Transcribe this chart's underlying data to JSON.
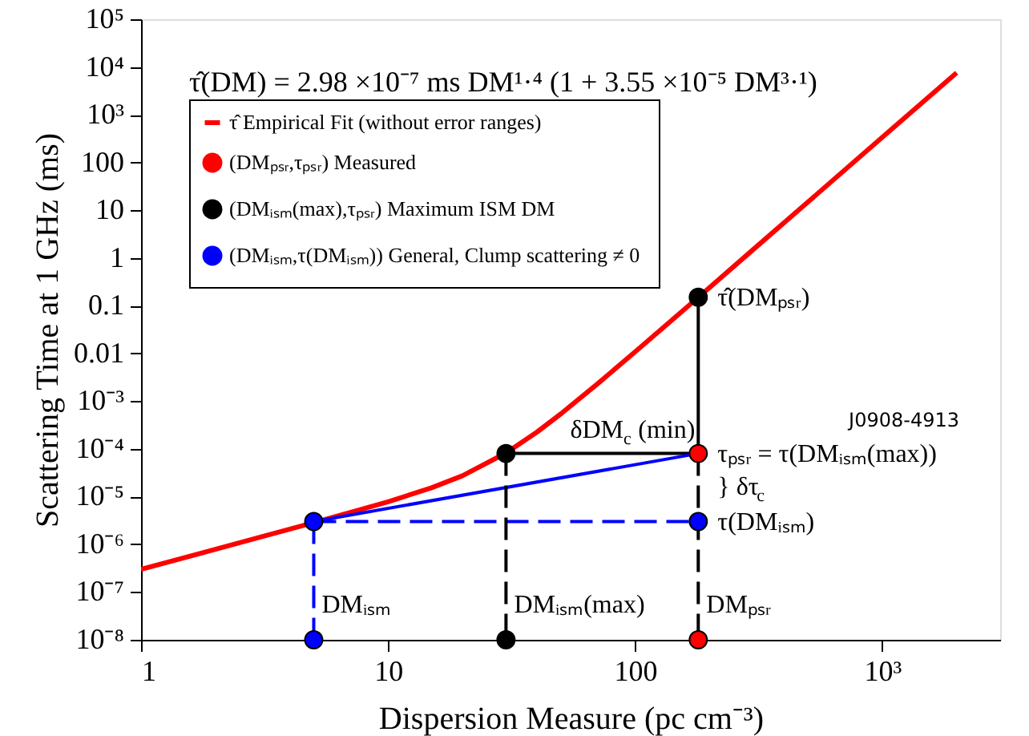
{
  "chart_data": {
    "type": "line",
    "xlabel": "Dispersion Measure (pc cm⁻³)",
    "ylabel": "Scattering Time at 1 GHz (ms)",
    "xlim": [
      1,
      3000
    ],
    "ylim": [
      1e-08,
      100000
    ],
    "log": "xy",
    "grid": false,
    "legend": "top left",
    "xticks": [
      1,
      10,
      100,
      {
        "value": 1000,
        "label": "10³"
      }
    ],
    "yticks": [
      {
        "value": 1e-08,
        "label": "10⁻⁸"
      },
      {
        "value": 1e-07,
        "label": "10⁻⁷"
      },
      {
        "value": 1e-06,
        "label": "10⁻⁶"
      },
      {
        "value": 1e-05,
        "label": "10⁻⁵"
      },
      {
        "value": 0.0001,
        "label": "10⁻⁴"
      },
      {
        "value": 0.001,
        "label": "10⁻³"
      },
      0.01,
      0.1,
      1,
      10,
      100,
      {
        "value": 1000,
        "label": "10³"
      },
      {
        "value": 10000,
        "label": "10⁴"
      },
      {
        "value": 100000,
        "label": "10⁵"
      }
    ],
    "series": [
      {
        "name": "τ̂  Empirical Fit (without error ranges)",
        "color": "#ff0000",
        "x": [
          1,
          2,
          3,
          5,
          10,
          15,
          20,
          30,
          40,
          50,
          70,
          100,
          150,
          185,
          300,
          500,
          1000,
          2000
        ],
        "values": [
          2.98e-07,
          7.86e-07,
          1.39e-06,
          2.85e-06,
          7.8e-06,
          1.53e-05,
          2.73e-05,
          8.2e-05,
          0.000224,
          0.00054,
          0.00225,
          0.0108,
          0.066,
          0.169,
          1.49,
          14.8,
          335,
          7570
        ]
      },
      {
        "color": "#000000",
        "line_style": "solid",
        "x": [
          180,
          180
        ],
        "values": [
          0.15,
          8e-05
        ]
      },
      {
        "color": "#000000",
        "line_style": "solid",
        "x": [
          180,
          30
        ],
        "values": [
          8e-05,
          8e-05
        ]
      },
      {
        "color": "#0000ff",
        "line_style": "solid",
        "x": [
          180,
          5
        ],
        "values": [
          8e-05,
          3e-06
        ]
      },
      {
        "color": "#0000ff",
        "line_style": "dashed",
        "x": [
          180,
          5
        ],
        "values": [
          3e-06,
          3e-06
        ]
      },
      {
        "color": "#0000ff",
        "line_style": "dashed",
        "x": [
          5,
          5
        ],
        "values": [
          3e-06,
          1e-08
        ]
      },
      {
        "color": "#000000",
        "line_style": "dashed",
        "x": [
          30,
          30
        ],
        "values": [
          8e-05,
          1e-08
        ]
      },
      {
        "color": "#000000",
        "line_style": "dashed",
        "x": [
          180,
          180
        ],
        "values": [
          8e-05,
          1e-08
        ]
      },
      {
        "type": "scatter",
        "marker": "circle",
        "name": "(DMₚₛᵣ,τₚₛᵣ)  Measured",
        "color": "#ff0000",
        "x": [
          180,
          180
        ],
        "values": [
          8e-05,
          1e-08
        ]
      },
      {
        "type": "scatter",
        "marker": "circle",
        "name": "(DMᵢₛₘ(max),τₚₛᵣ)  Maximum ISM DM",
        "color": "#000000",
        "x": [
          30,
          180,
          30
        ],
        "values": [
          8e-05,
          0.15,
          1e-08
        ]
      },
      {
        "type": "scatter",
        "marker": "circle",
        "name": "(DMᵢₛₘ,τ(DMᵢₛₘ))  General, Clump scattering ≠ 0",
        "color": "#0000ff",
        "x": [
          5,
          180,
          5
        ],
        "values": [
          3e-06,
          3e-06,
          1e-08
        ]
      }
    ],
    "annotations": [
      "τ̂(DM) = 2.98 ×10⁻⁷ ms DM¹·⁴ (1 + 3.55 ×10⁻⁵ DM³·¹)",
      "J0908-4913",
      {
        "text": "τ̂(DMₚₛᵣ)",
        "x": 180,
        "y": 0.15
      },
      {
        "text": "δDM$_{c}$ (min)",
        "x": 30,
        "y": 8e-05
      },
      {
        "text": "τₚₛᵣ = τ(DMᵢₛₘ(max))",
        "x": 180,
        "y": 8e-05
      },
      {
        "text": "} δτ$_{c}$",
        "x": 180,
        "y": 1.6e-05
      },
      {
        "text": "τ(DMᵢₛₘ)",
        "x": 180,
        "y": 3e-06
      },
      {
        "text": "DMᵢₛₘ",
        "x": 5,
        "y": 1e-08
      },
      {
        "text": "DMᵢₛₘ(max)",
        "x": 30,
        "y": 1e-08
      },
      {
        "text": "DMₚₛᵣ",
        "x": 180,
        "y": 1e-08
      }
    ]
  }
}
